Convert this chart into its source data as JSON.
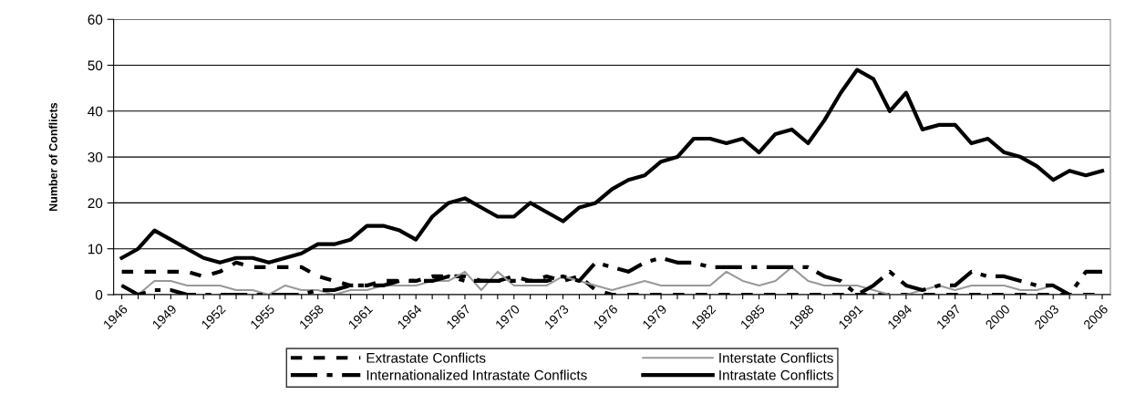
{
  "chart_data": {
    "type": "line",
    "ylabel": "Number of Conflicts",
    "categories": [
      "1946",
      null,
      null,
      "1949",
      null,
      null,
      "1952",
      null,
      null,
      "1955",
      null,
      null,
      "1958",
      null,
      null,
      "1961",
      null,
      null,
      "1964",
      null,
      null,
      "1967",
      null,
      null,
      "1970",
      null,
      null,
      "1973",
      null,
      null,
      "1976",
      null,
      null,
      "1979",
      null,
      null,
      "1982",
      null,
      null,
      "1985",
      null,
      null,
      "1988",
      null,
      null,
      "1991",
      null,
      null,
      "1994",
      null,
      null,
      "1997",
      null,
      null,
      "2000",
      null,
      null,
      "2003",
      null,
      null,
      "2006"
    ],
    "series": [
      {
        "name": "Extrastate Conflicts",
        "color": "#000000",
        "line_style": "dashed",
        "values": [
          5,
          5,
          5,
          5,
          5,
          4,
          5,
          7,
          6,
          6,
          6,
          6,
          4,
          3,
          2,
          2,
          3,
          3,
          3,
          4,
          4,
          4,
          3,
          3,
          4,
          3,
          4,
          3,
          4,
          1,
          0,
          0,
          0,
          0,
          0,
          0,
          0,
          0,
          0,
          0,
          0,
          0,
          0,
          0,
          0,
          0,
          0,
          0,
          0,
          0,
          0,
          0,
          0,
          0,
          0,
          0,
          0,
          0,
          0,
          0,
          0
        ]
      },
      {
        "name": "Interstate Conflicts",
        "color": "#999999",
        "line_style": "solid",
        "values": [
          2,
          0,
          3,
          3,
          2,
          2,
          2,
          1,
          1,
          0,
          2,
          1,
          1,
          0,
          1,
          1,
          2,
          2,
          2,
          3,
          3,
          5,
          1,
          5,
          2,
          2,
          2,
          4,
          3,
          2,
          1,
          2,
          3,
          2,
          2,
          2,
          2,
          5,
          3,
          2,
          3,
          6,
          3,
          2,
          2,
          2,
          1,
          0,
          0,
          1,
          2,
          1,
          2,
          2,
          2,
          1,
          1,
          2,
          0,
          0,
          0
        ]
      },
      {
        "name": "Internationalized Intrastate Conflicts",
        "color": "#000000",
        "line_style": "dashdot",
        "values": [
          2,
          0,
          1,
          1,
          0,
          0,
          0,
          0,
          0,
          0,
          0,
          0,
          1,
          1,
          2,
          2,
          2,
          3,
          3,
          3,
          4,
          3,
          3,
          3,
          3,
          3,
          3,
          4,
          3,
          7,
          6,
          5,
          7,
          8,
          7,
          7,
          6,
          6,
          6,
          6,
          6,
          6,
          6,
          4,
          3,
          0,
          2,
          5,
          2,
          1,
          2,
          2,
          5,
          4,
          4,
          3,
          2,
          2,
          0,
          5,
          5
        ]
      },
      {
        "name": "Intrastate Conflicts",
        "color": "#000000",
        "line_style": "solid",
        "values": [
          8,
          10,
          14,
          12,
          10,
          8,
          7,
          8,
          8,
          7,
          8,
          9,
          11,
          11,
          12,
          15,
          15,
          14,
          12,
          17,
          20,
          21,
          19,
          17,
          17,
          20,
          18,
          16,
          19,
          20,
          23,
          25,
          26,
          29,
          30,
          34,
          34,
          33,
          34,
          31,
          35,
          36,
          33,
          38,
          44,
          49,
          47,
          40,
          44,
          36,
          37,
          37,
          33,
          34,
          31,
          30,
          28,
          25,
          27,
          26,
          27
        ]
      }
    ],
    "ylim": [
      0,
      60
    ],
    "yticks": [
      0,
      10,
      20,
      30,
      40,
      50,
      60
    ],
    "grid": "y",
    "legend": "bottom",
    "marker": "none"
  }
}
